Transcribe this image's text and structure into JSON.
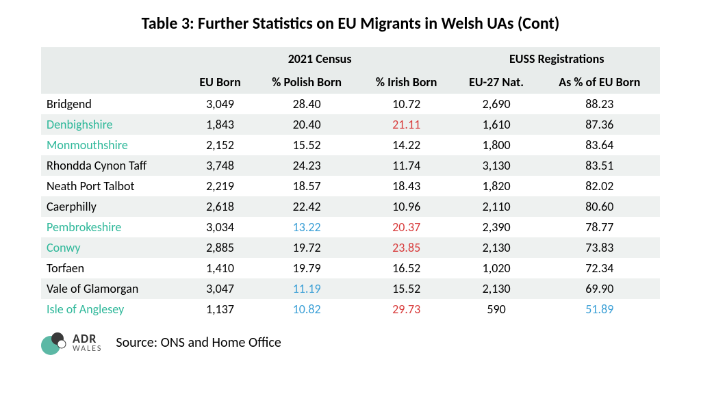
{
  "title": "Table 3: Further Statistics on EU Migrants in Welsh UAs (Cont)",
  "group_headers": {
    "census": "2021 Census",
    "euss": "EUSS Registrations"
  },
  "headers": {
    "name": "",
    "eu_born": "EU Born",
    "polish": "% Polish Born",
    "irish": "% Irish Born",
    "eu27": "EU-27 Nat.",
    "pct_eu_born": "As % of EU Born"
  },
  "rows": [
    {
      "name": "Bridgend",
      "name_hl": false,
      "eu_born": "3,049",
      "polish": "28.40",
      "polish_hl": null,
      "irish": "10.72",
      "irish_hl": null,
      "eu27": "2,690",
      "pct": "88.23",
      "pct_hl": null
    },
    {
      "name": "Denbighshire",
      "name_hl": true,
      "eu_born": "1,843",
      "polish": "20.40",
      "polish_hl": null,
      "irish": "21.11",
      "irish_hl": "red",
      "eu27": "1,610",
      "pct": "87.36",
      "pct_hl": null
    },
    {
      "name": "Monmouthshire",
      "name_hl": true,
      "eu_born": "2,152",
      "polish": "15.52",
      "polish_hl": null,
      "irish": "14.22",
      "irish_hl": null,
      "eu27": "1,800",
      "pct": "83.64",
      "pct_hl": null
    },
    {
      "name": "Rhondda Cynon Taff",
      "name_hl": false,
      "eu_born": "3,748",
      "polish": "24.23",
      "polish_hl": null,
      "irish": "11.74",
      "irish_hl": null,
      "eu27": "3,130",
      "pct": "83.51",
      "pct_hl": null
    },
    {
      "name": "Neath Port Talbot",
      "name_hl": false,
      "eu_born": "2,219",
      "polish": "18.57",
      "polish_hl": null,
      "irish": "18.43",
      "irish_hl": null,
      "eu27": "1,820",
      "pct": "82.02",
      "pct_hl": null
    },
    {
      "name": "Caerphilly",
      "name_hl": false,
      "eu_born": "2,618",
      "polish": "22.42",
      "polish_hl": null,
      "irish": "10.96",
      "irish_hl": null,
      "eu27": "2,110",
      "pct": "80.60",
      "pct_hl": null
    },
    {
      "name": "Pembrokeshire",
      "name_hl": true,
      "eu_born": "3,034",
      "polish": "13.22",
      "polish_hl": "blue",
      "irish": "20.37",
      "irish_hl": "red",
      "eu27": "2,390",
      "pct": "78.77",
      "pct_hl": null
    },
    {
      "name": "Conwy",
      "name_hl": true,
      "eu_born": "2,885",
      "polish": "19.72",
      "polish_hl": null,
      "irish": "23.85",
      "irish_hl": "red",
      "eu27": "2,130",
      "pct": "73.83",
      "pct_hl": null
    },
    {
      "name": "Torfaen",
      "name_hl": false,
      "eu_born": "1,410",
      "polish": "19.79",
      "polish_hl": null,
      "irish": "16.52",
      "irish_hl": null,
      "eu27": "1,020",
      "pct": "72.34",
      "pct_hl": null
    },
    {
      "name": "Vale of Glamorgan",
      "name_hl": false,
      "eu_born": "3,047",
      "polish": "11.19",
      "polish_hl": "blue",
      "irish": "15.52",
      "irish_hl": null,
      "eu27": "2,130",
      "pct": "69.90",
      "pct_hl": null
    },
    {
      "name": "Isle of Anglesey",
      "name_hl": true,
      "eu_born": "1,137",
      "polish": "10.82",
      "polish_hl": "blue",
      "irish": "29.73",
      "irish_hl": "red",
      "eu27": "590",
      "pct": "51.89",
      "pct_hl": "blue"
    }
  ],
  "source": "Source: ONS and Home Office",
  "logo": {
    "adr": "ADR",
    "wales": "WALES"
  },
  "colors": {
    "header_bg": "#e8eceb",
    "row_alt_bg": "#eef1f0",
    "name_green": "#2fb89a",
    "val_red": "#d83b3b",
    "val_blue": "#3a9fd6",
    "teal": "#5cb8a5",
    "dark": "#3a3a3a"
  }
}
